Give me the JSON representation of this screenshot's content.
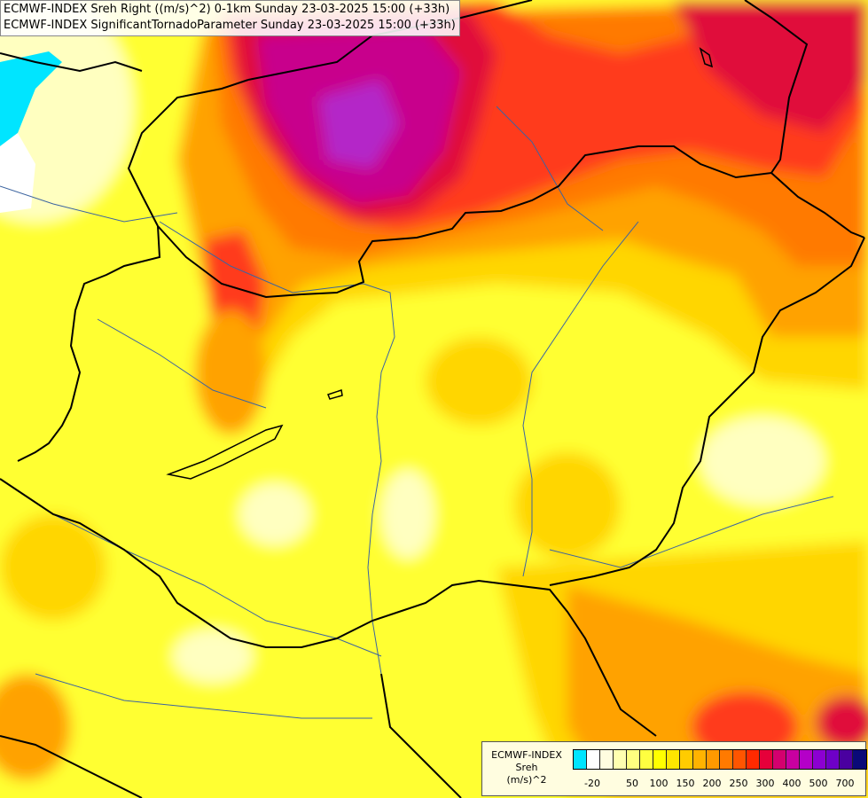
{
  "titles": {
    "line1": "ECMWF-INDEX Sreh Right ((m/s)^2) 0-1km Sunday 23-03-2025 15:00 (+33h)",
    "line2": "ECMWF-INDEX SignificantTornadoParameter Sunday 23-03-2025 15:00 (+33h)"
  },
  "legend": {
    "model": "ECMWF-INDEX",
    "parameter": "Sreh",
    "unit": "(m/s)^2",
    "colors": [
      "#00e5ff",
      "#ffffff",
      "#fffde0",
      "#ffffb0",
      "#ffff80",
      "#ffff40",
      "#ffff00",
      "#ffe600",
      "#ffcc00",
      "#ffb300",
      "#ff9900",
      "#ff7a00",
      "#ff5500",
      "#ff2a00",
      "#e6003a",
      "#d4006e",
      "#c800a0",
      "#b400c8",
      "#8c00d2",
      "#6e00c8",
      "#4a00a0",
      "#0a0a78"
    ],
    "tick_labels": [
      "-20",
      "50",
      "100",
      "150",
      "200",
      "250",
      "300",
      "400",
      "500",
      "700"
    ]
  },
  "map": {
    "field_colors": {
      "yellow": "#ffff33",
      "gold": "#ffd600",
      "orange": "#ffa200",
      "dark_orange": "#ff7a00",
      "red": "#ff3a1a",
      "crimson": "#e0103a",
      "magenta": "#c8008c",
      "violet": "#b428c8",
      "pale": "#ffffc0",
      "cyan": "#00e5ff",
      "white": "#ffffff"
    },
    "border_color": "#000000",
    "river_color": "#3c64a0"
  }
}
